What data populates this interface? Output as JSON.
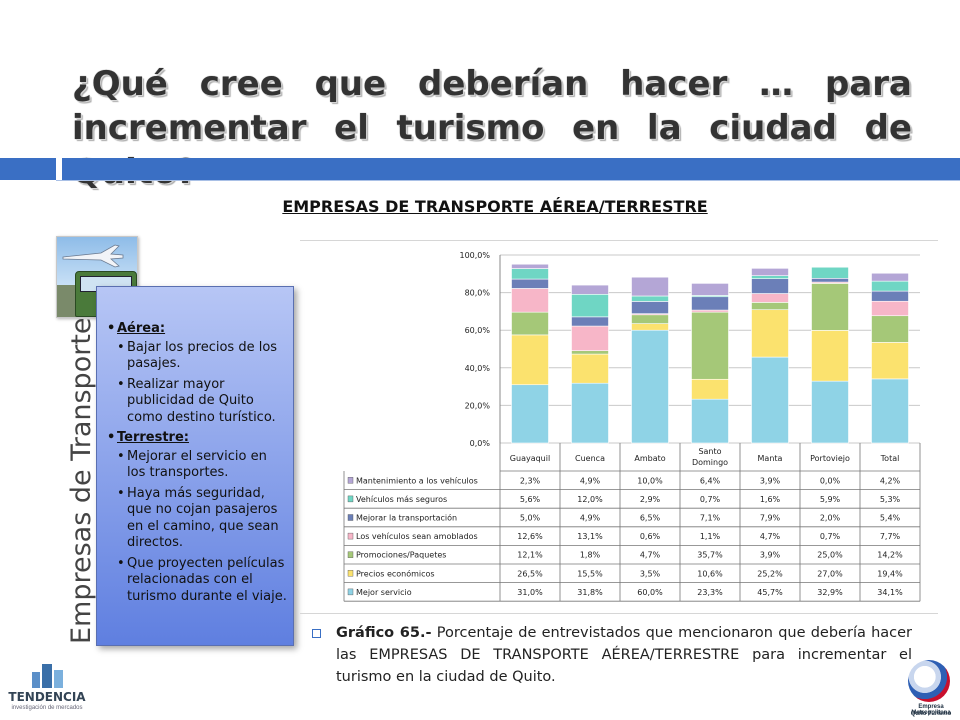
{
  "header": {
    "title": "¿Qué cree que deberían hacer … para incrementar el turismo en la ciudad de Quito?",
    "accent_color": "#3a6fc4"
  },
  "subtitle": "EMPRESAS DE TRANSPORTE AÉREA/TERRESTRE",
  "sidebar": {
    "vertical_label": "Empresas de Transporte",
    "photo_icon": "plane-and-bus-photo",
    "groups": [
      {
        "heading": "Aérea:",
        "items": [
          "Bajar los precios de los pasajes.",
          "Realizar mayor publicidad de Quito como destino turístico."
        ]
      },
      {
        "heading": "Terrestre:",
        "items": [
          "Mejorar el servicio en los transportes.",
          "Haya más seguridad, que no cojan pasajeros en el camino, que sean directos.",
          "Que proyecten películas relacionadas con el turismo durante el viaje."
        ]
      }
    ]
  },
  "chart_data": {
    "type": "bar",
    "stacked": true,
    "categories": [
      "Guayaquil",
      "Cuenca",
      "Ambato",
      "Santo Domingo",
      "Manta",
      "Portoviejo",
      "Total"
    ],
    "ylim": [
      0,
      100
    ],
    "y_ticks": [
      "0,0%",
      "20,0%",
      "40,0%",
      "60,0%",
      "80,0%",
      "100,0%"
    ],
    "grid": true,
    "data_table": true,
    "series": [
      {
        "name": "Mejor servicio",
        "color": "#8fd3e6",
        "values": [
          31.0,
          31.8,
          60.0,
          23.3,
          45.7,
          32.9,
          34.1
        ],
        "labels": [
          "31,0%",
          "31,8%",
          "60,0%",
          "23,3%",
          "45,7%",
          "32,9%",
          "34,1%"
        ]
      },
      {
        "name": "Precios económicos",
        "color": "#fbe26e",
        "values": [
          26.5,
          15.5,
          3.5,
          10.6,
          25.2,
          27.0,
          19.4
        ],
        "labels": [
          "26,5%",
          "15,5%",
          "3,5%",
          "10,6%",
          "25,2%",
          "27,0%",
          "19,4%"
        ]
      },
      {
        "name": "Promociones/Paquetes",
        "color": "#a5c878",
        "values": [
          12.1,
          1.8,
          4.7,
          35.7,
          3.9,
          25.0,
          14.2
        ],
        "labels": [
          "12,1%",
          "1,8%",
          "4,7%",
          "35,7%",
          "3,9%",
          "25,0%",
          "14,2%"
        ]
      },
      {
        "name": "Los vehículos sean amoblados",
        "color": "#f7b6c8",
        "values": [
          12.6,
          13.1,
          0.6,
          1.1,
          4.7,
          0.7,
          7.7
        ],
        "labels": [
          "12,6%",
          "13,1%",
          "0,6%",
          "1,1%",
          "4,7%",
          "0,7%",
          "7,7%"
        ]
      },
      {
        "name": "Mejorar la transportación",
        "color": "#6b7fb8",
        "values": [
          5.0,
          4.9,
          6.5,
          7.1,
          7.9,
          2.0,
          5.4
        ],
        "labels": [
          "5,0%",
          "4,9%",
          "6,5%",
          "7,1%",
          "7,9%",
          "2,0%",
          "5,4%"
        ]
      },
      {
        "name": "Vehículos más seguros",
        "color": "#6fd6c4",
        "values": [
          5.6,
          12.0,
          2.9,
          0.7,
          1.6,
          5.9,
          5.3
        ],
        "labels": [
          "5,6%",
          "12,0%",
          "2,9%",
          "0,7%",
          "1,6%",
          "5,9%",
          "5,3%"
        ]
      },
      {
        "name": "Mantenimiento a los vehículos",
        "color": "#b4a6d6",
        "values": [
          2.3,
          4.9,
          10.0,
          6.4,
          3.9,
          0.0,
          4.2
        ],
        "labels": [
          "2,3%",
          "4,9%",
          "10,0%",
          "6,4%",
          "3,9%",
          "0,0%",
          "4,2%"
        ]
      }
    ]
  },
  "caption": {
    "label": "Gráfico 65.-",
    "text": " Porcentaje de entrevistados que mencionaron que debería hacer las EMPRESAS DE TRANSPORTE AÉREA/TERRESTRE para incrementar el turismo en la ciudad de Quito."
  },
  "logos": {
    "left_name": "TENDENCIA",
    "left_tagline": "investigación de mercados",
    "left_icon": "building-logo-icon",
    "right_line1": "Empresa Metropolitana",
    "right_line2": "Quito Turismo",
    "right_icon": "quito-turismo-logo-icon"
  }
}
